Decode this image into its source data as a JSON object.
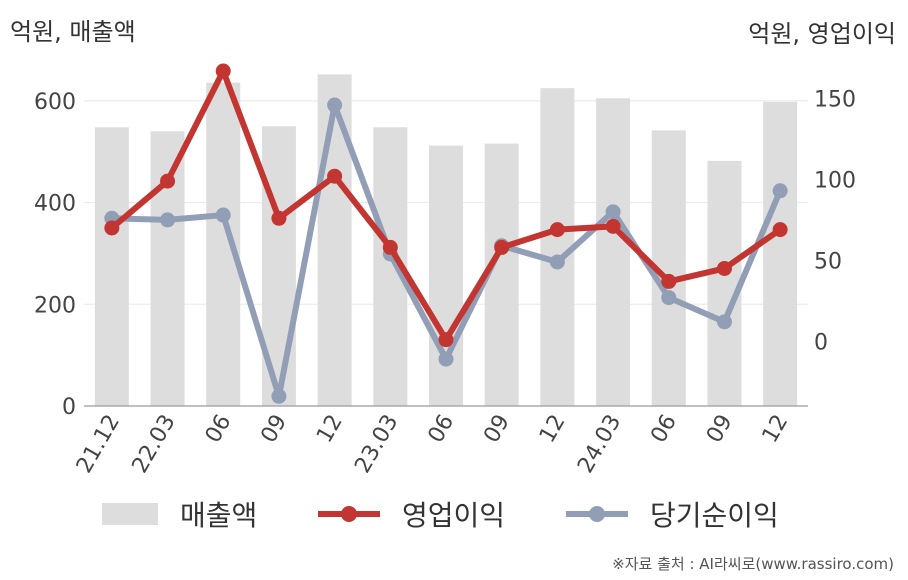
{
  "units": {
    "left": "억원, 매출액",
    "right": "억원, 영업이익"
  },
  "source": "※자료 출처 : AI라씨로(www.rassiro.com)",
  "colors": {
    "bar": "#dddddd",
    "op": "#c23531",
    "net": "#919eb5",
    "grid": "#e8e8e8",
    "axis": "#aaaaaa"
  },
  "chart_data": {
    "type": "bar+line",
    "categories": [
      "21.12",
      "22.03",
      "06",
      "09",
      "12",
      "23.03",
      "06",
      "09",
      "12",
      "24.03",
      "06",
      "09",
      "12"
    ],
    "y_left": {
      "ticks": [
        0,
        200,
        400,
        600
      ],
      "range": [
        0,
        700
      ]
    },
    "y_right": {
      "ticks": [
        0,
        50,
        100,
        150
      ],
      "range": [
        -40,
        180
      ]
    },
    "series": [
      {
        "name": "매출액",
        "type": "bar",
        "axis": "left",
        "values": [
          548,
          540,
          636,
          550,
          652,
          548,
          512,
          516,
          625,
          605,
          542,
          482,
          598
        ]
      },
      {
        "name": "영업이익",
        "type": "line",
        "axis": "right",
        "values": [
          70,
          99,
          167,
          76,
          102,
          58,
          1,
          58,
          69,
          71,
          37,
          45,
          69
        ]
      },
      {
        "name": "당기순이익",
        "type": "line",
        "axis": "right",
        "values": [
          76,
          75,
          78,
          -34,
          146,
          54,
          -11,
          59,
          49,
          80,
          27,
          12,
          93
        ]
      }
    ]
  }
}
